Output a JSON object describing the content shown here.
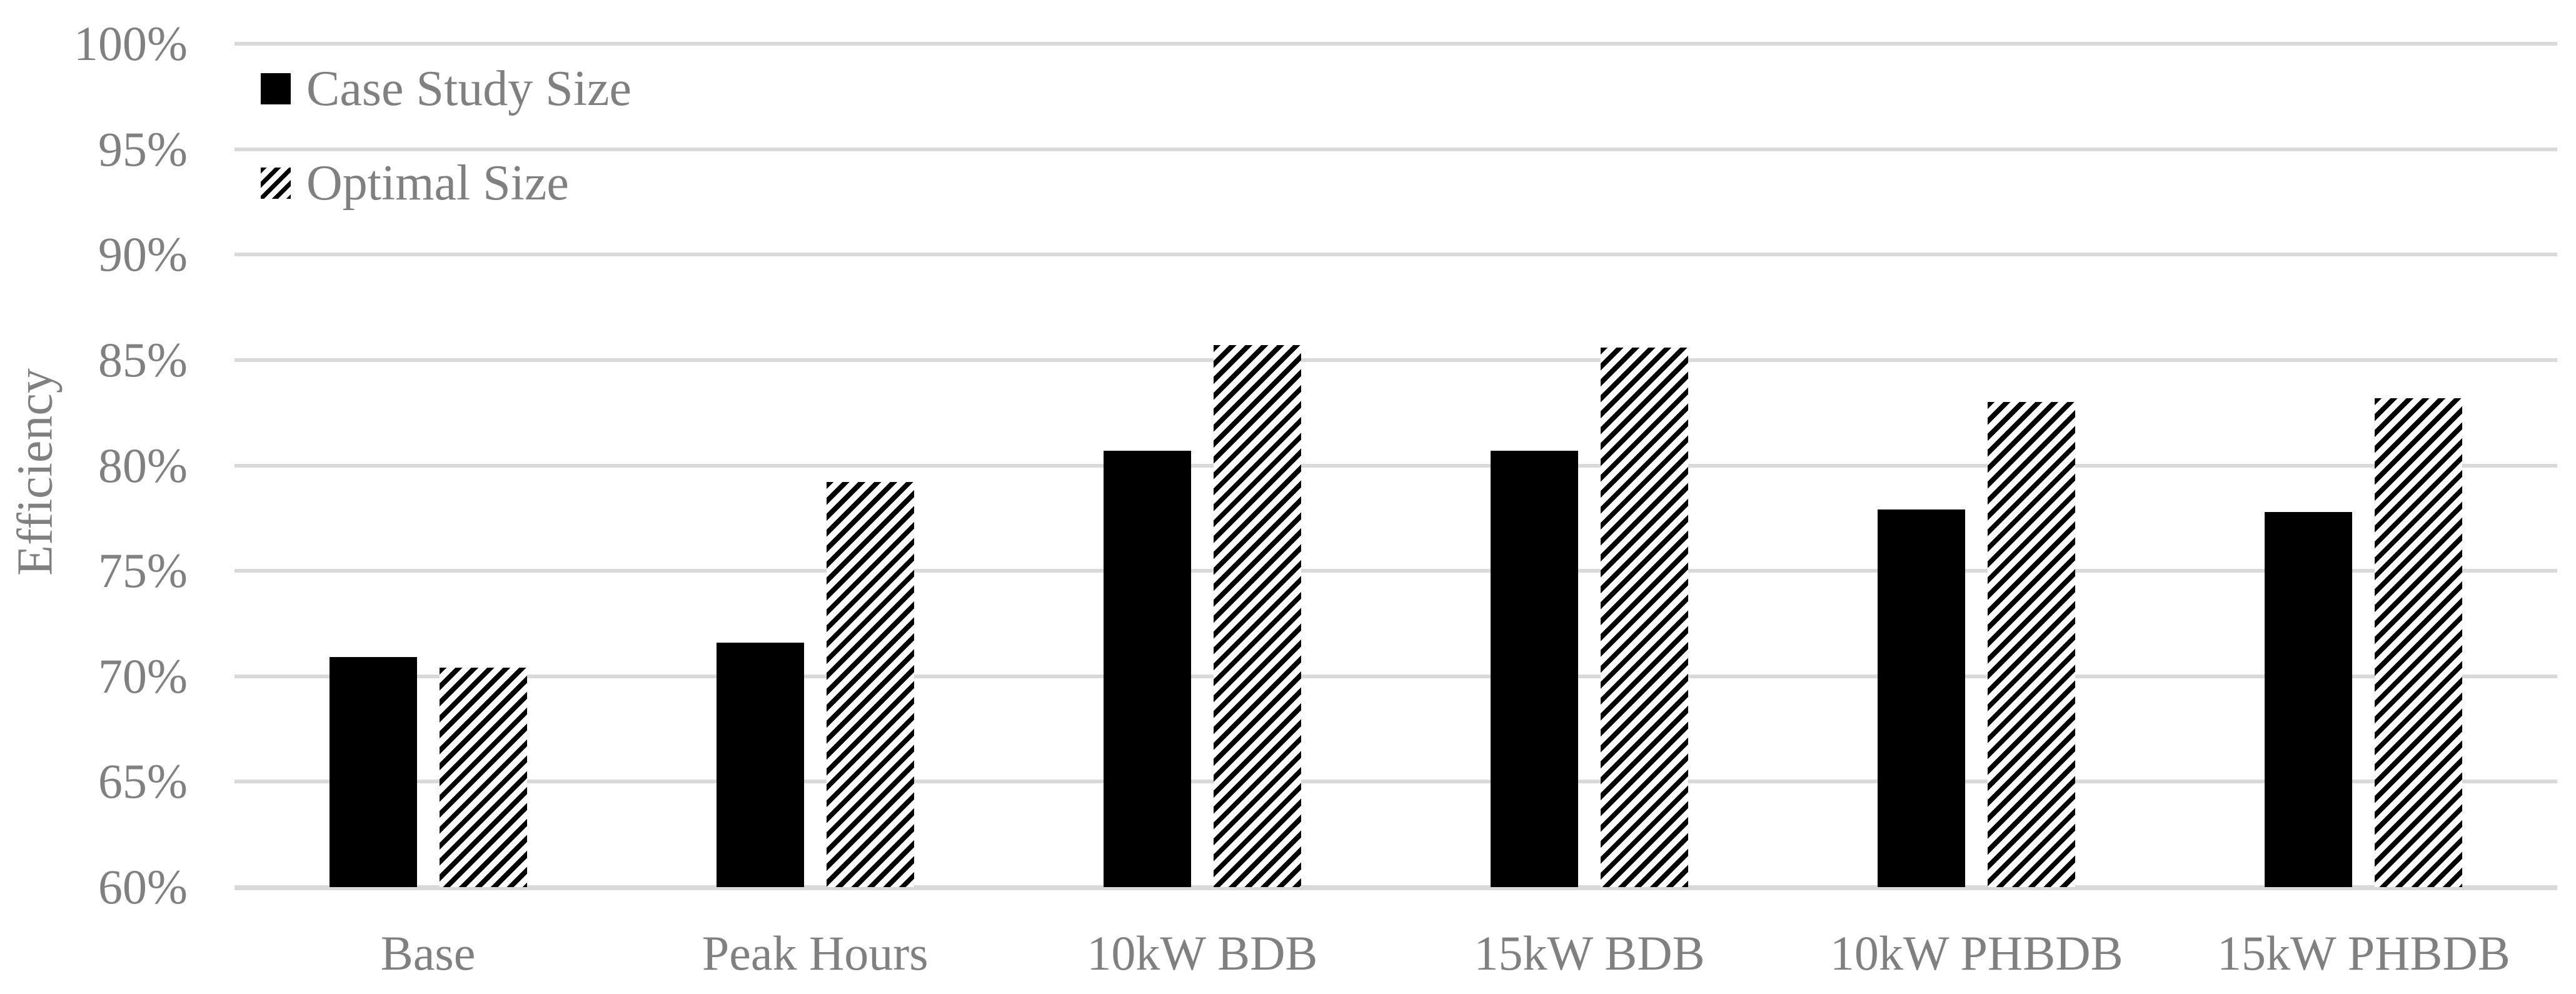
{
  "colors": {
    "background": "#ffffff",
    "gridline": "#d9d9d9",
    "axis_text": "#808080",
    "bar_fill": "#000000"
  },
  "chart_data": {
    "type": "bar",
    "title": "",
    "categories": [
      "Base",
      "Peak Hours",
      "10kW BDB",
      "15kW BDB",
      "10kW PHBDB",
      "15kW PHBDB"
    ],
    "series": [
      {
        "name": "Case Study Size",
        "pattern": "solid",
        "values": [
          70.9,
          71.6,
          80.7,
          80.7,
          77.9,
          77.8
        ]
      },
      {
        "name": "Optimal Size",
        "pattern": "hatched",
        "values": [
          70.4,
          79.2,
          85.7,
          85.6,
          83.0,
          83.2
        ]
      }
    ],
    "xlabel": "",
    "ylabel": "Efficiency",
    "ylim": [
      60,
      100
    ],
    "ytick_step": 5,
    "ytick_labels": [
      "100%",
      "95%",
      "90%",
      "85%",
      "80%",
      "75%",
      "70%",
      "65%",
      "60%"
    ],
    "grid": "horizontal",
    "legend_position": "inside-top-left"
  }
}
